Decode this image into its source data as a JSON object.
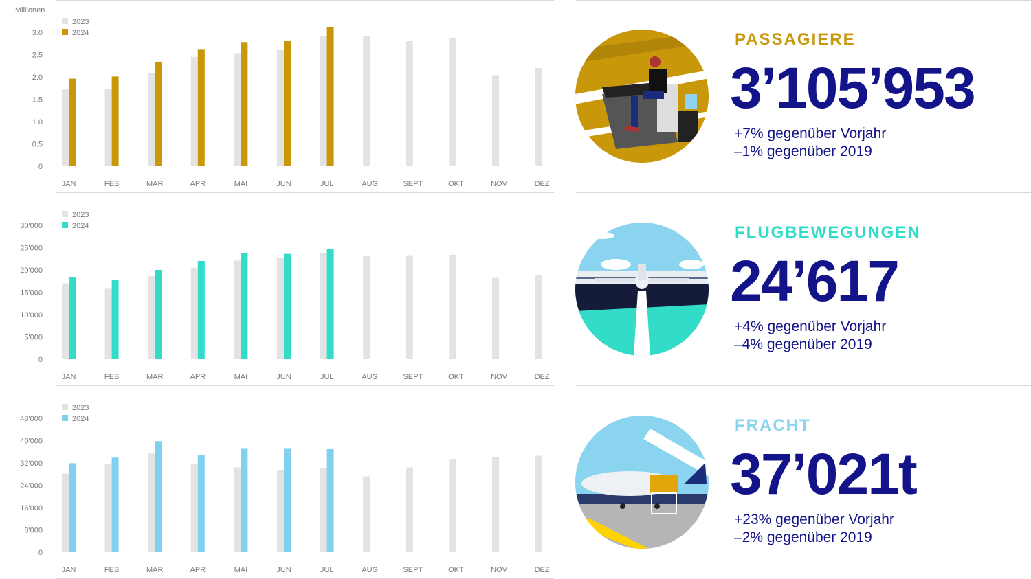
{
  "colors": {
    "bar_2023": "#e3e3e3",
    "navy": "#14148a",
    "passengers": "#c9980a",
    "movements": "#33dcc8",
    "freight": "#82d0ef",
    "freight_label": "#8ad4f0"
  },
  "chart_data": [
    {
      "type": "bar",
      "ylabel": "Millionen",
      "categories": [
        "JAN",
        "FEB",
        "MAR",
        "APR",
        "MAI",
        "JUN",
        "JUL",
        "AUG",
        "SEPT",
        "OKT",
        "NOV",
        "DEZ"
      ],
      "yticks": [
        "0",
        "0.5",
        "1.0",
        "1.5",
        "2.0",
        "2.5",
        "3.0"
      ],
      "ylim": [
        0,
        3.0
      ],
      "legend": "top-left",
      "series": [
        {
          "name": "2023",
          "color": "#e3e3e3",
          "values": [
            1.72,
            1.73,
            2.08,
            2.45,
            2.53,
            2.6,
            2.92,
            2.92,
            2.81,
            2.87,
            2.04,
            2.2
          ]
        },
        {
          "name": "2024",
          "color": "#c9980a",
          "values": [
            1.96,
            2.01,
            2.34,
            2.61,
            2.78,
            2.8,
            3.11,
            null,
            null,
            null,
            null,
            null
          ]
        }
      ]
    },
    {
      "type": "bar",
      "ylabel": "",
      "categories": [
        "JAN",
        "FEB",
        "MAR",
        "APR",
        "MAI",
        "JUN",
        "JUL",
        "AUG",
        "SEPT",
        "OKT",
        "NOV",
        "DEZ"
      ],
      "yticks": [
        "0",
        "5'000",
        "10'000",
        "15'000",
        "20'000",
        "25'000",
        "30'000"
      ],
      "ylim": [
        0,
        30000
      ],
      "legend": "top-left",
      "series": [
        {
          "name": "2023",
          "color": "#e3e3e3",
          "values": [
            17000,
            15800,
            18600,
            20500,
            22100,
            22700,
            23800,
            23200,
            23300,
            23400,
            18200,
            18900
          ]
        },
        {
          "name": "2024",
          "color": "#33dcc8",
          "values": [
            18400,
            17800,
            20000,
            22000,
            23800,
            23600,
            24617,
            null,
            null,
            null,
            null,
            null
          ]
        }
      ]
    },
    {
      "type": "bar",
      "ylabel": "",
      "categories": [
        "JAN",
        "FEB",
        "MAR",
        "APR",
        "MAI",
        "JUN",
        "JUL",
        "AUG",
        "SEPT",
        "OKT",
        "NOV",
        "DEZ"
      ],
      "yticks": [
        "0",
        "8'000",
        "16'000",
        "24'000",
        "32'000",
        "40'000",
        "48'000"
      ],
      "ylim": [
        0,
        48000
      ],
      "legend": "top-left",
      "series": [
        {
          "name": "2023",
          "color": "#e3e3e3",
          "values": [
            28200,
            31600,
            35400,
            31600,
            30400,
            29400,
            30000,
            27200,
            30400,
            33500,
            34200,
            34600
          ]
        },
        {
          "name": "2024",
          "color": "#82d0ef",
          "values": [
            31900,
            33900,
            39800,
            34800,
            37300,
            37300,
            37021,
            null,
            null,
            null,
            null,
            null
          ]
        }
      ]
    }
  ],
  "stats": [
    {
      "label": "PASSAGIERE",
      "value": "3’105’953",
      "line1": "+7% gegenüber Vorjahr",
      "line2": "–1% gegenüber 2019",
      "illustration": "passenger-lounge-illustration"
    },
    {
      "label": "FLUGBEWEGUNGEN",
      "value": "24’617",
      "line1": "+4% gegenüber Vorjahr",
      "line2": "–4% gegenüber 2019",
      "illustration": "airplane-runway-illustration"
    },
    {
      "label": "FRACHT",
      "value": "37’021t",
      "line1": "+23% gegenüber Vorjahr",
      "line2": "–2% gegenüber 2019",
      "illustration": "cargo-loading-illustration"
    }
  ]
}
